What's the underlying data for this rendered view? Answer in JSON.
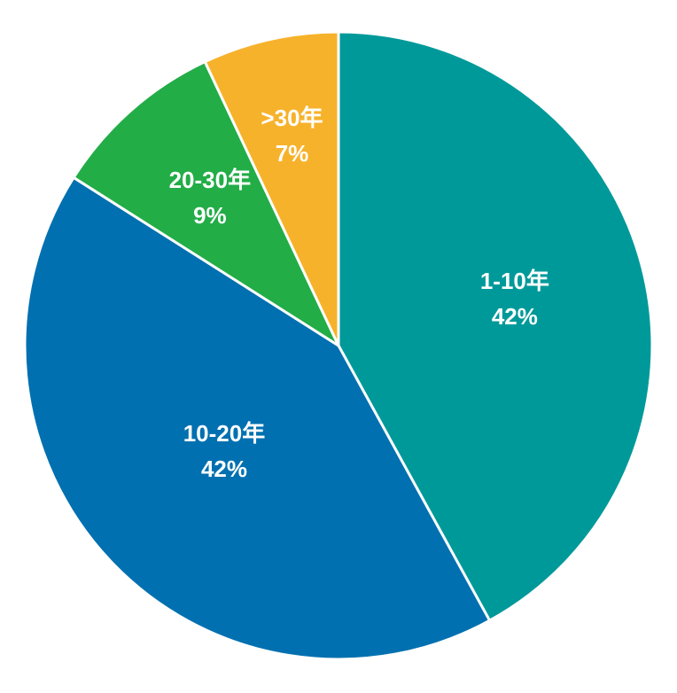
{
  "chart_data": {
    "type": "pie",
    "title": "",
    "legend": "none",
    "slices": [
      {
        "label": "1-10年",
        "value": 42,
        "display": "42%",
        "color": "#00999A"
      },
      {
        "label": "10-20年",
        "value": 42,
        "display": "42%",
        "color": "#0070B0"
      },
      {
        "label": "20-30年",
        "value": 9,
        "display": "9%",
        "color": "#22AD47"
      },
      {
        "label": ">30年",
        "value": 7,
        "display": "7%",
        "color": "#F7B22B"
      }
    ]
  }
}
